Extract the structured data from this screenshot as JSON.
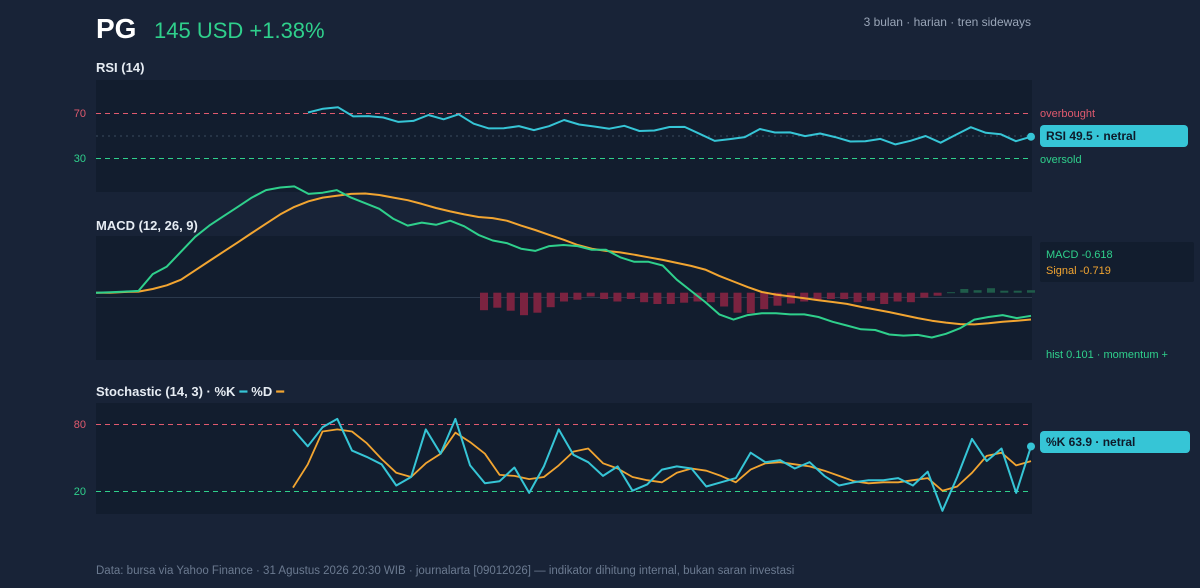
{
  "header": {
    "ticker": "PG",
    "price": "145 USD +1.38%",
    "subtitle": "3 bulan · harian · tren sideways"
  },
  "footer": "Data: bursa via Yahoo Finance · 31 Agustus 2026 20:30 WIB · journalarta [09012026] — indikator dihitung internal, bukan saran investasi",
  "colors": {
    "background": "#182337",
    "panel": "#121d2e",
    "rsi_line": "#36c5d6",
    "macd_line": "#2fd08c",
    "signal_line": "#f2a531",
    "hist_negative": "#7b2340",
    "hist_positive": "#1f5c4a",
    "overbought": "#e05a6e",
    "oversold": "#2fd08c",
    "price_up": "#2fd08c"
  },
  "chart_data": [
    {
      "type": "line",
      "title": "RSI (14)",
      "ylim": [
        10,
        90
      ],
      "ticks": [
        "70",
        "30"
      ],
      "tick_values": [
        70,
        30
      ],
      "midline": 50,
      "zones": {
        "upper": 70,
        "upper_label": "overbought",
        "lower": 30,
        "lower_label": "oversold"
      },
      "badge": "RSI 49.5 · netral",
      "series": [
        {
          "values": [
            66.8,
            69.5,
            70.5,
            64.0,
            64.2,
            63.2,
            60.1,
            60.8,
            65.0,
            61.9,
            65.5,
            58.8,
            55.4,
            55.5,
            57.1,
            54.2,
            57.0,
            61.4,
            58.2,
            56.8,
            55.2,
            57.3,
            53.6,
            53.9,
            56.4,
            56.5,
            51.6,
            46.5,
            47.8,
            49.2,
            55.0,
            52.5,
            52.6,
            49.9,
            51.8,
            49.2,
            46.1,
            46.2,
            47.9,
            44.0,
            46.6,
            50.0,
            45.2,
            50.8,
            56.3,
            52.3,
            51.2,
            46.3,
            49.5
          ]
        }
      ]
    },
    {
      "type": "line",
      "title": "MACD (12, 26, 9)",
      "ylim": [
        -1.75,
        2.7
      ],
      "zero_line": 0,
      "legend": {
        "macd": "MACD -0.618",
        "signal": "Signal -0.719"
      },
      "hist_label": "hist 0.101 · momentum +",
      "series": [
        {
          "values": [
            0,
            0.01,
            0.03,
            0.05,
            0.5,
            0.7,
            1.1,
            1.5,
            1.8,
            2.05,
            2.3,
            2.55,
            2.75,
            2.82,
            2.85,
            2.65,
            2.68,
            2.75,
            2.55,
            2.4,
            2.25,
            1.98,
            1.8,
            1.88,
            1.82,
            1.93,
            1.78,
            1.55,
            1.4,
            1.33,
            1.18,
            1.12,
            1.25,
            1.28,
            1.25,
            1.15,
            1.15,
            0.95,
            0.83,
            0.83,
            0.73,
            0.35,
            0.05,
            -0.25,
            -0.58,
            -0.72,
            -0.6,
            -0.55,
            -0.55,
            -0.58,
            -0.58,
            -0.65,
            -0.78,
            -0.88,
            -0.98,
            -1.0,
            -1.12,
            -1.15,
            -1.13,
            -1.2,
            -1.1,
            -0.95,
            -0.72,
            -0.65,
            -0.6,
            -0.68,
            -0.618
          ]
        },
        {
          "values": [
            0,
            0.0,
            0.02,
            0.03,
            0.1,
            0.2,
            0.35,
            0.6,
            0.85,
            1.1,
            1.35,
            1.6,
            1.85,
            2.1,
            2.3,
            2.45,
            2.55,
            2.6,
            2.65,
            2.66,
            2.62,
            2.55,
            2.48,
            2.38,
            2.27,
            2.18,
            2.1,
            2.03,
            2.0,
            1.93,
            1.8,
            1.68,
            1.55,
            1.42,
            1.28,
            1.18,
            1.12,
            1.08,
            1.02,
            0.95,
            0.88,
            0.8,
            0.72,
            0.62,
            0.45,
            0.3,
            0.15,
            0.02,
            -0.05,
            -0.1,
            -0.15,
            -0.2,
            -0.25,
            -0.3,
            -0.38,
            -0.45,
            -0.52,
            -0.6,
            -0.68,
            -0.75,
            -0.8,
            -0.84,
            -0.85,
            -0.82,
            -0.78,
            -0.75,
            -0.719
          ]
        },
        {
          "values": [
            -0.7,
            -0.6,
            -0.72,
            -0.9,
            -0.8,
            -0.58,
            -0.35,
            -0.28,
            -0.15,
            -0.25,
            -0.35,
            -0.25,
            -0.38,
            -0.45,
            -0.45,
            -0.4,
            -0.35,
            -0.38,
            -0.55,
            -0.8,
            -0.82,
            -0.66,
            -0.52,
            -0.43,
            -0.35,
            -0.3,
            -0.25,
            -0.25,
            -0.38,
            -0.32,
            -0.45,
            -0.35,
            -0.38,
            -0.2,
            -0.12,
            0.02,
            0.15,
            0.1,
            0.18,
            0.08,
            0.08,
            0.101
          ]
        }
      ]
    },
    {
      "type": "line",
      "title": "Stochastic (14, 3) · %K",
      "legend": [
        "%K",
        "%D"
      ],
      "ylim": [
        0,
        105
      ],
      "ticks": [
        "80",
        "20"
      ],
      "tick_values": [
        80,
        20
      ],
      "badge": "%K 63.9 · netral",
      "series": [
        {
          "name": "%K",
          "values": [
            80,
            64,
            82,
            90,
            60,
            54,
            47,
            27,
            35,
            80,
            57,
            90,
            46,
            29,
            31,
            44,
            20,
            45,
            80,
            56,
            49,
            36,
            45,
            22,
            28,
            42,
            45,
            43,
            26,
            30,
            34,
            58,
            49,
            51,
            43,
            49,
            36,
            27,
            30,
            32,
            32,
            34,
            27,
            40,
            3,
            35,
            71,
            50,
            62,
            20,
            63.9
          ]
        },
        {
          "name": "%D",
          "values": [
            25,
            47,
            78,
            80,
            78,
            67,
            52,
            39,
            35,
            48,
            57,
            77,
            68,
            57,
            37,
            36,
            33,
            35,
            46,
            59,
            62,
            48,
            43,
            35,
            32,
            30,
            39,
            43,
            41,
            36,
            30,
            42,
            48,
            49,
            47,
            45,
            41,
            36,
            31,
            29,
            30,
            30,
            32,
            34,
            22,
            26,
            39,
            55,
            58,
            46,
            50
          ]
        }
      ]
    }
  ]
}
